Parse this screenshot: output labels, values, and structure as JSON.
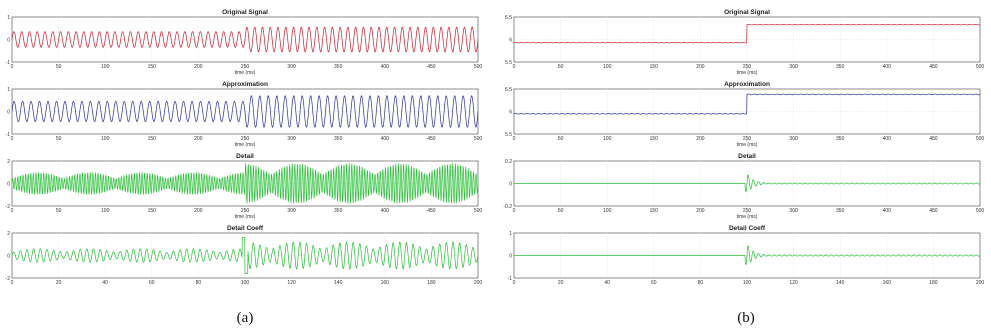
{
  "colors": {
    "red": "#cc1d2e",
    "blue": "#2b2f9e",
    "green": "#27c235"
  },
  "figures": [
    {
      "caption": "(a)",
      "panels": [
        {
          "title": "Original Signal",
          "xlabel": "time (ms)",
          "color": "red",
          "xlim": [
            0,
            500
          ],
          "xticks": [
            "0",
            "50",
            "100",
            "150",
            "200",
            "250",
            "300",
            "350",
            "400",
            "450",
            "500"
          ],
          "ylim": [
            -1,
            1
          ],
          "yticks": [
            "1",
            "0",
            "-1"
          ],
          "signal": {
            "type": "sine",
            "cycles": 60,
            "amp_before": 0.35,
            "amp_after": 0.55,
            "switch_x": 250,
            "offset": 0
          }
        },
        {
          "title": "Approximation",
          "xlabel": "time (ms)",
          "color": "blue",
          "xlim": [
            0,
            500
          ],
          "xticks": [
            "0",
            "50",
            "100",
            "150",
            "200",
            "250",
            "300",
            "350",
            "400",
            "450",
            "500"
          ],
          "ylim": [
            -1,
            1
          ],
          "yticks": [
            "1",
            "0",
            "-1"
          ],
          "signal": {
            "type": "sine",
            "cycles": 55,
            "amp_before": 0.45,
            "amp_after": 0.7,
            "switch_x": 250,
            "offset": 0
          }
        },
        {
          "title": "Detail",
          "xlabel": "time (ms)",
          "color": "green",
          "xlim": [
            0,
            500
          ],
          "xticks": [
            "0",
            "50",
            "100",
            "150",
            "200",
            "250",
            "300",
            "350",
            "400",
            "450",
            "500"
          ],
          "ylim": [
            -2,
            2
          ],
          "yticks": [
            "2",
            "0",
            "-2"
          ],
          "signal": {
            "type": "beat",
            "cycles": 180,
            "amp_before": 0.5,
            "amp_after": 0.9,
            "switch_x": 250,
            "offset": 0
          }
        },
        {
          "title": "Detail Coeff",
          "xlabel": "",
          "color": "green",
          "xlim": [
            0,
            200
          ],
          "xticks": [
            "0",
            "20",
            "40",
            "60",
            "80",
            "100",
            "120",
            "140",
            "160",
            "180",
            "200"
          ],
          "ylim": [
            -2,
            2
          ],
          "yticks": [
            "2",
            "0",
            "-2"
          ],
          "signal": {
            "type": "beat",
            "cycles": 70,
            "amp_before": 0.3,
            "amp_after": 0.6,
            "switch_x": 100,
            "offset": 0,
            "spike": 1.6
          }
        }
      ]
    },
    {
      "caption": "(b)",
      "panels": [
        {
          "title": "Original Signal",
          "xlabel": "time (ms)",
          "color": "red",
          "xlim": [
            0,
            500
          ],
          "xticks": [
            "0",
            "50",
            "100",
            "150",
            "200",
            "250",
            "300",
            "350",
            "400",
            "450",
            "500"
          ],
          "ylim": [
            5.5,
            6.5
          ],
          "yticks": [
            "6.5",
            "6",
            "5.5"
          ],
          "signal": {
            "type": "step",
            "level_before": 5.93,
            "level_after": 6.33,
            "switch_x": 250,
            "ripple": 0.006
          }
        },
        {
          "title": "Approximation",
          "xlabel": "time (ms)",
          "color": "blue",
          "xlim": [
            0,
            500
          ],
          "xticks": [
            "0",
            "50",
            "100",
            "150",
            "200",
            "250",
            "300",
            "350",
            "400",
            "450",
            "500"
          ],
          "ylim": [
            5.5,
            6.5
          ],
          "yticks": [
            "6.5",
            "6",
            "5.5"
          ],
          "signal": {
            "type": "step",
            "level_before": 5.95,
            "level_after": 6.38,
            "switch_x": 250,
            "ripple": 0.008
          }
        },
        {
          "title": "Detail",
          "xlabel": "time (ms)",
          "color": "green",
          "xlim": [
            0,
            500
          ],
          "xticks": [
            "0",
            "50",
            "100",
            "150",
            "200",
            "250",
            "300",
            "350",
            "400",
            "450",
            "500"
          ],
          "ylim": [
            -0.2,
            0.2
          ],
          "yticks": [
            "0.2",
            "0",
            "-0.2"
          ],
          "signal": {
            "type": "transient",
            "spike": 0.09,
            "switch_x": 250,
            "ripple": 0.008
          }
        },
        {
          "title": "Detail Coeff",
          "xlabel": "",
          "color": "green",
          "xlim": [
            0,
            200
          ],
          "xticks": [
            "0",
            "20",
            "40",
            "60",
            "80",
            "100",
            "120",
            "140",
            "160",
            "180",
            "200"
          ],
          "ylim": [
            -1,
            1
          ],
          "yticks": [
            "1",
            "0",
            "-1"
          ],
          "signal": {
            "type": "transient",
            "spike": 0.5,
            "switch_x": 100,
            "ripple": 0.05
          }
        }
      ]
    }
  ]
}
